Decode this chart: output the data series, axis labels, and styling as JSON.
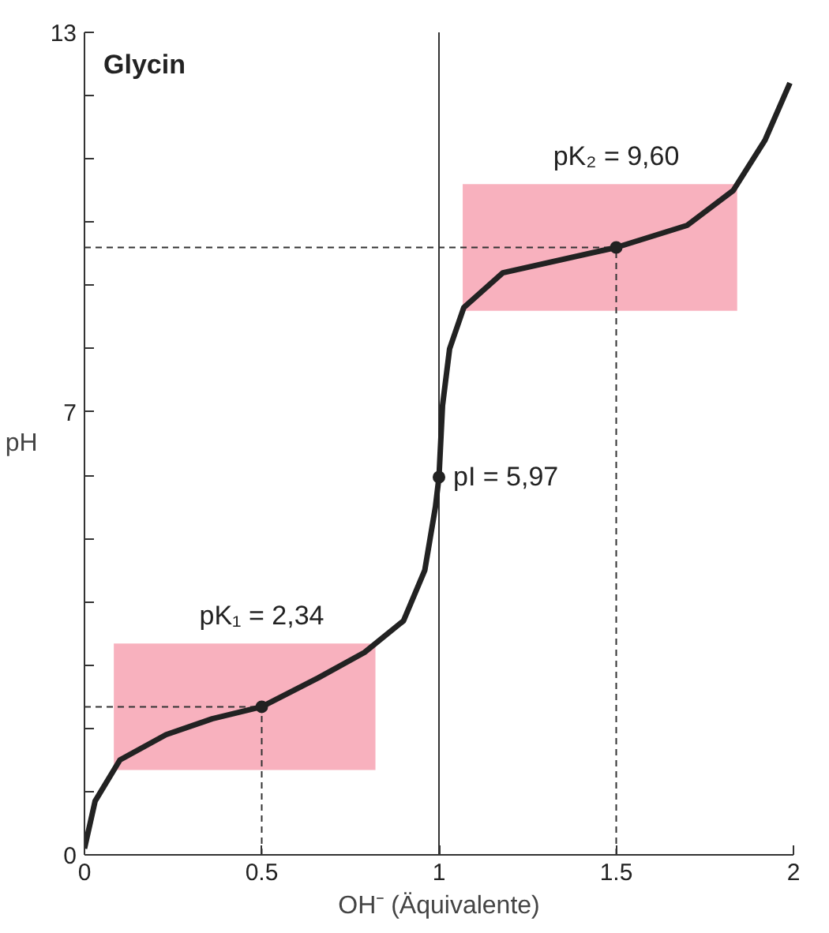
{
  "chart_data": {
    "type": "line",
    "title": "Glycin",
    "xlabel": "OH⁻ (Äquivalente)",
    "ylabel": "pH",
    "x": [
      0,
      0.03,
      0.1,
      0.23,
      0.36,
      0.5,
      0.66,
      0.79,
      0.9,
      0.96,
      0.99,
      1.0,
      1.01,
      1.03,
      1.07,
      1.18,
      1.5,
      1.7,
      1.83,
      1.92,
      1.99
    ],
    "series": [
      {
        "color": "#222222",
        "values": [
          0.1,
          0.85,
          1.5,
          1.9,
          2.15,
          2.34,
          2.8,
          3.2,
          3.7,
          4.5,
          5.5,
          5.97,
          7.1,
          8.0,
          8.65,
          9.2,
          9.6,
          9.95,
          10.5,
          11.3,
          12.2
        ]
      }
    ],
    "xlim": [
      0,
      2
    ],
    "ylim": [
      0,
      13
    ],
    "xticks": [
      0,
      0.5,
      1,
      1.5,
      2
    ],
    "yticks": [
      0,
      {
        "value": 1,
        "label": null
      },
      {
        "value": 2,
        "label": null
      },
      {
        "value": 3,
        "label": null
      },
      {
        "value": 4,
        "label": null
      },
      {
        "value": 5,
        "label": null
      },
      {
        "value": 6,
        "label": null
      },
      7,
      {
        "value": 8,
        "label": null
      },
      {
        "value": 9,
        "label": null
      },
      {
        "value": 10,
        "label": null
      },
      {
        "value": 11,
        "label": null
      },
      {
        "value": 12,
        "label": null
      },
      13
    ],
    "marker": "none",
    "line_style": "solid",
    "grid": false,
    "annotations": [
      {
        "text": "pK₁ = 2,34",
        "x": 0.5,
        "y": 2.34
      },
      {
        "text": "pI = 5,97",
        "x": 1,
        "y": 5.97
      },
      {
        "text": "pK₂ = 9,60",
        "x": 1.5,
        "y": 9.6
      }
    ],
    "bands": [
      {
        "axis": "y",
        "from": 1.34,
        "to": 3.34,
        "color": "#f7a3b3"
      },
      {
        "axis": "y",
        "from": 8.6,
        "to": 10.6,
        "color": "#f7a3b3"
      }
    ],
    "ref_lines": [
      {
        "axis": "x",
        "value": 1,
        "line_style": "solid"
      },
      {
        "axis": "x",
        "value": 0.5,
        "line_style": "dashed"
      },
      {
        "axis": "x",
        "value": 1.5,
        "line_style": "dashed"
      },
      {
        "axis": "y",
        "value": 2.34,
        "line_style": "dashed"
      },
      {
        "axis": "y",
        "value": 9.6,
        "line_style": "dashed"
      }
    ]
  }
}
